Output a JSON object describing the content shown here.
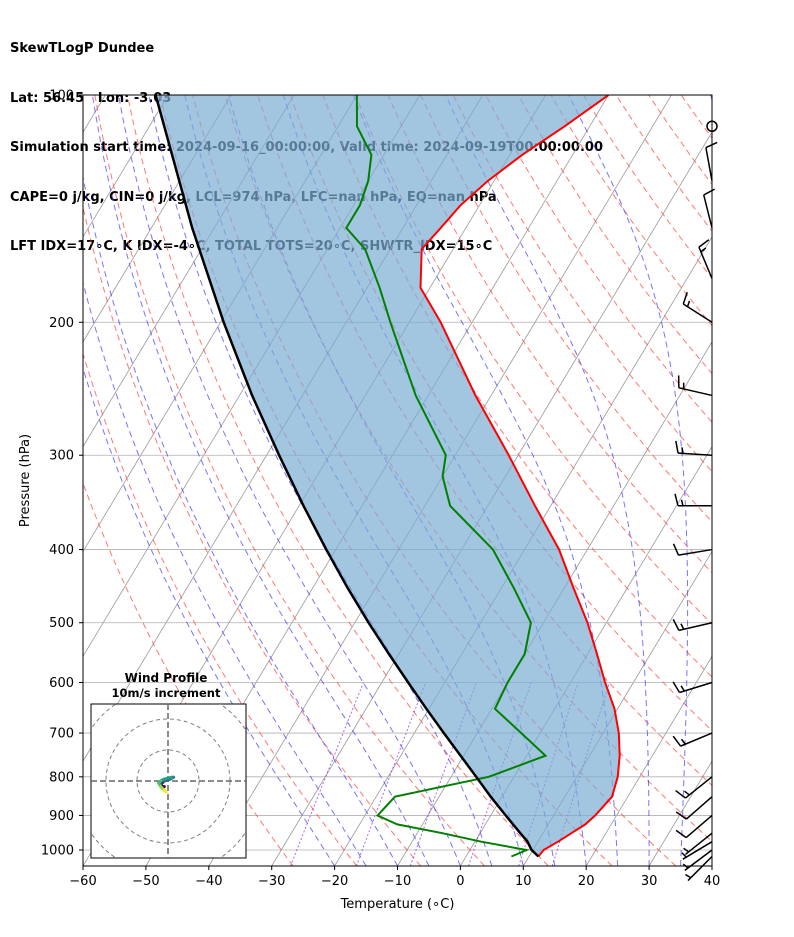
{
  "header": {
    "lines": [
      "SkewTLogP Dundee",
      "Lat: 56.45   Lon: -3.03",
      "Simulation start time: 2024-09-16_00:00:00, Valid time: 2024-09-19T00:00:00.00",
      "CAPE=0 j/kg, CIN=0 j/kg, LCL=974 hPa, LFC=nan hPa, EQ=nan hPa",
      "LFT IDX=17∘C, K IDX=-4∘C, TOTAL TOTS=20∘C, SHWTR_IDX=15∘C"
    ]
  },
  "chart_data": {
    "type": "line",
    "title": "SkewTLogP Dundee",
    "xlabel": "Temperature (∘C)",
    "ylabel": "Pressure (hPa)",
    "xlim": [
      -60,
      40
    ],
    "ylim": [
      1050,
      100
    ],
    "yscale": "log",
    "x_ticks": [
      -60,
      -50,
      -40,
      -30,
      -20,
      -10,
      0,
      10,
      20,
      30,
      40
    ],
    "x_tick_labels": [
      "−60",
      "−50",
      "−40",
      "−30",
      "−20",
      "−10",
      "0",
      "10",
      "20",
      "30",
      "40"
    ],
    "y_ticks": [
      100,
      200,
      300,
      400,
      500,
      600,
      700,
      800,
      900,
      1000
    ],
    "y_tick_labels": [
      "100",
      "200",
      "300",
      "400",
      "500",
      "600",
      "700",
      "800",
      "900",
      "1000"
    ],
    "grid": true,
    "colors": {
      "temperature": "#ff0000",
      "dewpoint": "#008000",
      "parcel": "#000000",
      "cape_fill": "#7bacd3",
      "dry_adiabat": "#ff4a4a",
      "moist_adiabat": "#3a3aff",
      "mixing_ratio": "#8a2be2",
      "isotherm": "#9a9a9a"
    },
    "series": [
      {
        "role": "temperature",
        "points": [
          [
            1020,
            11.5
          ],
          [
            1000,
            11.7
          ],
          [
            975,
            13.2
          ],
          [
            950,
            14.5
          ],
          [
            925,
            15.9
          ],
          [
            900,
            16.6
          ],
          [
            850,
            17.5
          ],
          [
            800,
            16.5
          ],
          [
            750,
            14.8
          ],
          [
            700,
            12.5
          ],
          [
            650,
            9.5
          ],
          [
            600,
            5.5
          ],
          [
            550,
            1.5
          ],
          [
            500,
            -3.0
          ],
          [
            450,
            -8.5
          ],
          [
            400,
            -14.5
          ],
          [
            350,
            -22.5
          ],
          [
            300,
            -31.5
          ],
          [
            250,
            -42.5
          ],
          [
            200,
            -55.0
          ],
          [
            180,
            -61.5
          ],
          [
            160,
            -65.0
          ],
          [
            150,
            -64.0
          ],
          [
            140,
            -63.0
          ],
          [
            130,
            -61.0
          ],
          [
            120,
            -58.0
          ],
          [
            110,
            -54.0
          ],
          [
            100,
            -50.0
          ]
        ]
      },
      {
        "role": "dewpoint",
        "points": [
          [
            1020,
            7.2
          ],
          [
            1000,
            9.0
          ],
          [
            975,
            1.0
          ],
          [
            950,
            -6.0
          ],
          [
            925,
            -14.0
          ],
          [
            900,
            -18.0
          ],
          [
            850,
            -17.0
          ],
          [
            800,
            -4.0
          ],
          [
            750,
            3.0
          ],
          [
            700,
            -3.0
          ],
          [
            650,
            -9.5
          ],
          [
            600,
            -10.0
          ],
          [
            550,
            -10.0
          ],
          [
            500,
            -12.0
          ],
          [
            450,
            -18.0
          ],
          [
            400,
            -25.0
          ],
          [
            350,
            -36.0
          ],
          [
            320,
            -40.0
          ],
          [
            300,
            -41.5
          ],
          [
            250,
            -52.0
          ],
          [
            200,
            -63.0
          ],
          [
            180,
            -68.0
          ],
          [
            160,
            -74.0
          ],
          [
            150,
            -79.0
          ],
          [
            140,
            -79.0
          ],
          [
            130,
            -80.0
          ],
          [
            120,
            -82.0
          ],
          [
            110,
            -87.0
          ],
          [
            100,
            -90.0
          ]
        ]
      },
      {
        "role": "parcel",
        "points": [
          [
            1020,
            11.5
          ],
          [
            1000,
            9.8
          ],
          [
            974,
            8.3
          ],
          [
            950,
            6.4
          ],
          [
            900,
            2.4
          ],
          [
            850,
            -1.8
          ],
          [
            800,
            -6.0
          ],
          [
            750,
            -10.5
          ],
          [
            700,
            -15.3
          ],
          [
            650,
            -20.4
          ],
          [
            600,
            -25.8
          ],
          [
            550,
            -31.6
          ],
          [
            500,
            -37.8
          ],
          [
            450,
            -44.4
          ],
          [
            400,
            -51.5
          ],
          [
            350,
            -59.3
          ],
          [
            300,
            -68.0
          ],
          [
            250,
            -78.0
          ],
          [
            200,
            -89.5
          ],
          [
            150,
            -103.5
          ],
          [
            100,
            -122.0
          ]
        ]
      }
    ],
    "wind_barbs": [
      {
        "p": 1020,
        "u": 3,
        "v": 3
      },
      {
        "p": 1000,
        "u": 4,
        "v": 3
      },
      {
        "p": 975,
        "u": 5,
        "v": 3
      },
      {
        "p": 950,
        "u": 5,
        "v": 4
      },
      {
        "p": 900,
        "u": 7,
        "v": 6
      },
      {
        "p": 850,
        "u": 8,
        "v": 7
      },
      {
        "p": 800,
        "u": 10,
        "v": 8
      },
      {
        "p": 700,
        "u": 12,
        "v": 5
      },
      {
        "p": 600,
        "u": 13,
        "v": 4
      },
      {
        "p": 500,
        "u": 13,
        "v": 3
      },
      {
        "p": 400,
        "u": 12,
        "v": 2
      },
      {
        "p": 350,
        "u": 15,
        "v": 0
      },
      {
        "p": 300,
        "u": 16,
        "v": -1
      },
      {
        "p": 250,
        "u": 13,
        "v": -3
      },
      {
        "p": 200,
        "u": 11,
        "v": -7
      },
      {
        "p": 175,
        "u": 5,
        "v": -12
      },
      {
        "p": 150,
        "u": 3,
        "v": -12
      },
      {
        "p": 130,
        "u": 2,
        "v": -11
      },
      {
        "p": 110,
        "u": 0,
        "v": 0
      }
    ],
    "hodograph": {
      "title": "Wind Profile",
      "subtitle": "10m/s increment",
      "ring_step": 10,
      "max": 25,
      "u": [
        -2,
        -3,
        -4,
        -3,
        -2,
        1,
        3,
        2,
        -2,
        -4,
        -5,
        -4,
        -3,
        -2,
        -1
      ],
      "v": [
        -3,
        -3,
        -2,
        -1,
        0,
        1,
        2,
        2,
        1,
        0,
        -1,
        -3,
        -4,
        -5,
        -6
      ]
    }
  }
}
